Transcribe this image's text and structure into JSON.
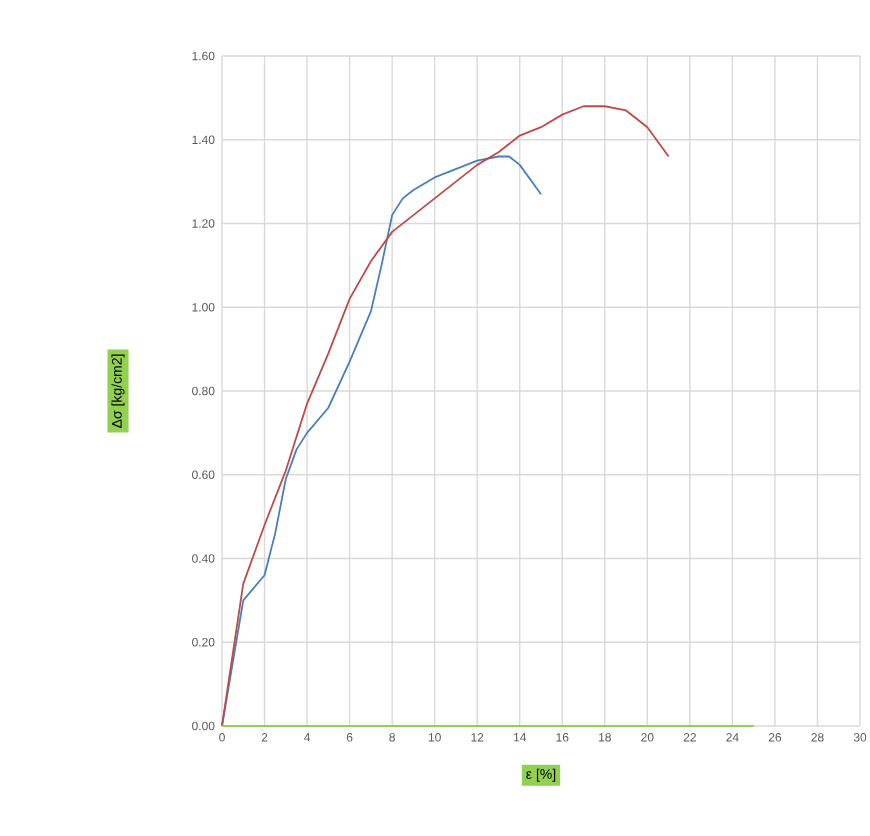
{
  "chart_data": {
    "type": "line",
    "xlabel": "ε [%]",
    "ylabel": "Δσ [kg/cm2]",
    "xlim": [
      0,
      30
    ],
    "xticks": [
      0,
      2,
      4,
      6,
      8,
      10,
      12,
      14,
      16,
      18,
      20,
      22,
      24,
      26,
      28,
      30
    ],
    "ylim": [
      0,
      1.6
    ],
    "yticks": [
      {
        "value": 0,
        "label": "0.00"
      },
      {
        "value": 0.2,
        "label": "0.20"
      },
      {
        "value": 0.4,
        "label": "0.40"
      },
      {
        "value": 0.6,
        "label": "0.60"
      },
      {
        "value": 0.8,
        "label": "0.80"
      },
      {
        "value": 1.0,
        "label": "1.00"
      },
      {
        "value": 1.2,
        "label": "1.20"
      },
      {
        "value": 1.4,
        "label": "1.40"
      },
      {
        "value": 1.6,
        "label": "1.60"
      }
    ],
    "grid": true,
    "series": [
      {
        "color": "#4a7ebb",
        "x": [
          0,
          1,
          1.5,
          2,
          2.5,
          3,
          3.5,
          4,
          5,
          6,
          7,
          7.5,
          8,
          8.5,
          9,
          10,
          11,
          12,
          13,
          13.5,
          14,
          15
        ],
        "values": [
          0,
          0.3,
          0.33,
          0.36,
          0.46,
          0.59,
          0.66,
          0.7,
          0.76,
          0.87,
          0.99,
          1.1,
          1.22,
          1.26,
          1.28,
          1.31,
          1.33,
          1.35,
          1.36,
          1.36,
          1.34,
          1.27
        ]
      },
      {
        "color": "#be4b48",
        "x": [
          0,
          1,
          2,
          3,
          4,
          5,
          6,
          7,
          8,
          9,
          10,
          11,
          12,
          13,
          14,
          15,
          16,
          17,
          18,
          19,
          20,
          21
        ],
        "values": [
          0,
          0.34,
          0.48,
          0.61,
          0.77,
          0.89,
          1.02,
          1.11,
          1.18,
          1.22,
          1.26,
          1.3,
          1.34,
          1.37,
          1.41,
          1.43,
          1.46,
          1.48,
          1.48,
          1.47,
          1.43,
          1.36
        ]
      },
      {
        "color": "#92d050",
        "x": [
          0,
          25
        ],
        "values": [
          0,
          0
        ]
      }
    ]
  }
}
